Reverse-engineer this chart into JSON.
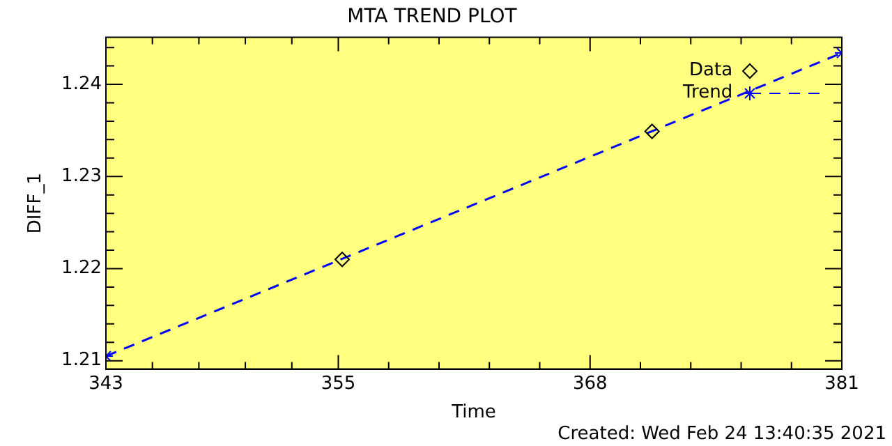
{
  "chart_data": {
    "type": "scatter",
    "title": "MTA TREND PLOT",
    "xlabel": "Time",
    "ylabel": "DIFF_1",
    "xlim": [
      343,
      381
    ],
    "ylim": [
      1.2091,
      1.2451
    ],
    "xticks": [
      343,
      {
        "value": 345.4,
        "label": null
      },
      {
        "value": 347.8,
        "label": null
      },
      {
        "value": 350.2,
        "label": null
      },
      {
        "value": 352.6,
        "label": null
      },
      355,
      {
        "value": 357.6,
        "label": null
      },
      {
        "value": 360.2,
        "label": null
      },
      {
        "value": 362.8,
        "label": null
      },
      {
        "value": 365.4,
        "label": null
      },
      368,
      {
        "value": 370.6,
        "label": null
      },
      {
        "value": 373.2,
        "label": null
      },
      {
        "value": 375.8,
        "label": null
      },
      {
        "value": 378.4,
        "label": null
      },
      381
    ],
    "yticks": [
      1.21,
      {
        "value": 1.212,
        "label": null
      },
      {
        "value": 1.214,
        "label": null
      },
      {
        "value": 1.216,
        "label": null
      },
      {
        "value": 1.218,
        "label": null
      },
      1.22,
      {
        "value": 1.222,
        "label": null
      },
      {
        "value": 1.224,
        "label": null
      },
      {
        "value": 1.226,
        "label": null
      },
      {
        "value": 1.228,
        "label": null
      },
      1.23,
      {
        "value": 1.232,
        "label": null
      },
      {
        "value": 1.234,
        "label": null
      },
      {
        "value": 1.236,
        "label": null
      },
      {
        "value": 1.238,
        "label": null
      },
      1.24,
      {
        "value": 1.242,
        "label": null
      },
      {
        "value": 1.244,
        "label": null
      }
    ],
    "grid": false,
    "legend": "top right",
    "series": [
      {
        "name": "Data",
        "type": "scatter",
        "marker": "diamond",
        "color": "#000000",
        "x": [
          355.2,
          371.2
        ],
        "values": [
          1.221,
          1.2349
        ]
      },
      {
        "name": "Trend",
        "type": "line",
        "marker": "cross",
        "line_style": "dashed",
        "color": "#0000ff",
        "x": [
          343,
          381
        ],
        "values": [
          1.2105,
          1.2434
        ]
      }
    ],
    "annotations": [
      "Created: Wed Feb 24 13:40:35 2021"
    ]
  }
}
